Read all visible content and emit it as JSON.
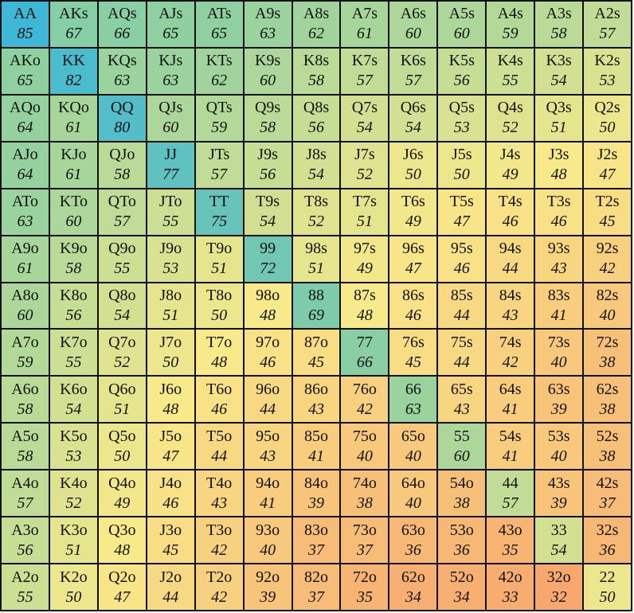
{
  "grid": {
    "rows": [
      [
        {
          "hand": "AA",
          "equity": "85"
        },
        {
          "hand": "AKs",
          "equity": "67"
        },
        {
          "hand": "AQs",
          "equity": "66"
        },
        {
          "hand": "AJs",
          "equity": "65"
        },
        {
          "hand": "ATs",
          "equity": "65"
        },
        {
          "hand": "A9s",
          "equity": "63"
        },
        {
          "hand": "A8s",
          "equity": "62"
        },
        {
          "hand": "A7s",
          "equity": "61"
        },
        {
          "hand": "A6s",
          "equity": "60"
        },
        {
          "hand": "A5s",
          "equity": "60"
        },
        {
          "hand": "A4s",
          "equity": "59"
        },
        {
          "hand": "A3s",
          "equity": "58"
        },
        {
          "hand": "A2s",
          "equity": "57"
        }
      ],
      [
        {
          "hand": "AKo",
          "equity": "65"
        },
        {
          "hand": "KK",
          "equity": "82"
        },
        {
          "hand": "KQs",
          "equity": "63"
        },
        {
          "hand": "KJs",
          "equity": "63"
        },
        {
          "hand": "KTs",
          "equity": "62"
        },
        {
          "hand": "K9s",
          "equity": "60"
        },
        {
          "hand": "K8s",
          "equity": "58"
        },
        {
          "hand": "K7s",
          "equity": "57"
        },
        {
          "hand": "K6s",
          "equity": "57"
        },
        {
          "hand": "K5s",
          "equity": "56"
        },
        {
          "hand": "K4s",
          "equity": "55"
        },
        {
          "hand": "K3s",
          "equity": "54"
        },
        {
          "hand": "K2s",
          "equity": "53"
        }
      ],
      [
        {
          "hand": "AQo",
          "equity": "64"
        },
        {
          "hand": "KQo",
          "equity": "61"
        },
        {
          "hand": "QQ",
          "equity": "80"
        },
        {
          "hand": "QJs",
          "equity": "60"
        },
        {
          "hand": "QTs",
          "equity": "59"
        },
        {
          "hand": "Q9s",
          "equity": "58"
        },
        {
          "hand": "Q8s",
          "equity": "56"
        },
        {
          "hand": "Q7s",
          "equity": "54"
        },
        {
          "hand": "Q6s",
          "equity": "54"
        },
        {
          "hand": "Q5s",
          "equity": "53"
        },
        {
          "hand": "Q4s",
          "equity": "52"
        },
        {
          "hand": "Q3s",
          "equity": "51"
        },
        {
          "hand": "Q2s",
          "equity": "50"
        }
      ],
      [
        {
          "hand": "AJo",
          "equity": "64"
        },
        {
          "hand": "KJo",
          "equity": "61"
        },
        {
          "hand": "QJo",
          "equity": "58"
        },
        {
          "hand": "JJ",
          "equity": "77"
        },
        {
          "hand": "JTs",
          "equity": "57"
        },
        {
          "hand": "J9s",
          "equity": "56"
        },
        {
          "hand": "J8s",
          "equity": "54"
        },
        {
          "hand": "J7s",
          "equity": "52"
        },
        {
          "hand": "J6s",
          "equity": "50"
        },
        {
          "hand": "J5s",
          "equity": "50"
        },
        {
          "hand": "J4s",
          "equity": "49"
        },
        {
          "hand": "J3s",
          "equity": "48"
        },
        {
          "hand": "J2s",
          "equity": "47"
        }
      ],
      [
        {
          "hand": "ATo",
          "equity": "63"
        },
        {
          "hand": "KTo",
          "equity": "60"
        },
        {
          "hand": "QTo",
          "equity": "57"
        },
        {
          "hand": "JTo",
          "equity": "55"
        },
        {
          "hand": "TT",
          "equity": "75"
        },
        {
          "hand": "T9s",
          "equity": "54"
        },
        {
          "hand": "T8s",
          "equity": "52"
        },
        {
          "hand": "T7s",
          "equity": "51"
        },
        {
          "hand": "T6s",
          "equity": "49"
        },
        {
          "hand": "T5s",
          "equity": "47"
        },
        {
          "hand": "T4s",
          "equity": "46"
        },
        {
          "hand": "T3s",
          "equity": "46"
        },
        {
          "hand": "T2s",
          "equity": "45"
        }
      ],
      [
        {
          "hand": "A9o",
          "equity": "61"
        },
        {
          "hand": "K9o",
          "equity": "58"
        },
        {
          "hand": "Q9o",
          "equity": "55"
        },
        {
          "hand": "J9o",
          "equity": "53"
        },
        {
          "hand": "T9o",
          "equity": "51"
        },
        {
          "hand": "99",
          "equity": "72"
        },
        {
          "hand": "98s",
          "equity": "51"
        },
        {
          "hand": "97s",
          "equity": "49"
        },
        {
          "hand": "96s",
          "equity": "47"
        },
        {
          "hand": "95s",
          "equity": "46"
        },
        {
          "hand": "94s",
          "equity": "44"
        },
        {
          "hand": "93s",
          "equity": "43"
        },
        {
          "hand": "92s",
          "equity": "42"
        }
      ],
      [
        {
          "hand": "A8o",
          "equity": "60"
        },
        {
          "hand": "K8o",
          "equity": "56"
        },
        {
          "hand": "Q8o",
          "equity": "54"
        },
        {
          "hand": "J8o",
          "equity": "51"
        },
        {
          "hand": "T8o",
          "equity": "50"
        },
        {
          "hand": "98o",
          "equity": "48"
        },
        {
          "hand": "88",
          "equity": "69"
        },
        {
          "hand": "87s",
          "equity": "48"
        },
        {
          "hand": "86s",
          "equity": "46"
        },
        {
          "hand": "85s",
          "equity": "44"
        },
        {
          "hand": "84s",
          "equity": "43"
        },
        {
          "hand": "83s",
          "equity": "41"
        },
        {
          "hand": "82s",
          "equity": "40"
        }
      ],
      [
        {
          "hand": "A7o",
          "equity": "59"
        },
        {
          "hand": "K7o",
          "equity": "55"
        },
        {
          "hand": "Q7o",
          "equity": "52"
        },
        {
          "hand": "J7o",
          "equity": "50"
        },
        {
          "hand": "T7o",
          "equity": "48"
        },
        {
          "hand": "97o",
          "equity": "46"
        },
        {
          "hand": "87o",
          "equity": "45"
        },
        {
          "hand": "77",
          "equity": "66"
        },
        {
          "hand": "76s",
          "equity": "45"
        },
        {
          "hand": "75s",
          "equity": "44"
        },
        {
          "hand": "74s",
          "equity": "42"
        },
        {
          "hand": "73s",
          "equity": "40"
        },
        {
          "hand": "72s",
          "equity": "38"
        }
      ],
      [
        {
          "hand": "A6o",
          "equity": "58"
        },
        {
          "hand": "K6o",
          "equity": "54"
        },
        {
          "hand": "Q6o",
          "equity": "51"
        },
        {
          "hand": "J6o",
          "equity": "48"
        },
        {
          "hand": "T6o",
          "equity": "46"
        },
        {
          "hand": "96o",
          "equity": "44"
        },
        {
          "hand": "86o",
          "equity": "43"
        },
        {
          "hand": "76o",
          "equity": "42"
        },
        {
          "hand": "66",
          "equity": "63"
        },
        {
          "hand": "65s",
          "equity": "43"
        },
        {
          "hand": "64s",
          "equity": "41"
        },
        {
          "hand": "63s",
          "equity": "39"
        },
        {
          "hand": "62s",
          "equity": "38"
        }
      ],
      [
        {
          "hand": "A5o",
          "equity": "58"
        },
        {
          "hand": "K5o",
          "equity": "53"
        },
        {
          "hand": "Q5o",
          "equity": "50"
        },
        {
          "hand": "J5o",
          "equity": "47"
        },
        {
          "hand": "T5o",
          "equity": "44"
        },
        {
          "hand": "95o",
          "equity": "43"
        },
        {
          "hand": "85o",
          "equity": "41"
        },
        {
          "hand": "75o",
          "equity": "40"
        },
        {
          "hand": "65o",
          "equity": "40"
        },
        {
          "hand": "55",
          "equity": "60"
        },
        {
          "hand": "54s",
          "equity": "41"
        },
        {
          "hand": "53s",
          "equity": "40"
        },
        {
          "hand": "52s",
          "equity": "38"
        }
      ],
      [
        {
          "hand": "A4o",
          "equity": "57"
        },
        {
          "hand": "K4o",
          "equity": "52"
        },
        {
          "hand": "Q4o",
          "equity": "49"
        },
        {
          "hand": "J4o",
          "equity": "46"
        },
        {
          "hand": "T4o",
          "equity": "43"
        },
        {
          "hand": "94o",
          "equity": "41"
        },
        {
          "hand": "84o",
          "equity": "39"
        },
        {
          "hand": "74o",
          "equity": "38"
        },
        {
          "hand": "64o",
          "equity": "40"
        },
        {
          "hand": "54o",
          "equity": "38"
        },
        {
          "hand": "44",
          "equity": "57"
        },
        {
          "hand": "43s",
          "equity": "39"
        },
        {
          "hand": "42s",
          "equity": "37"
        }
      ],
      [
        {
          "hand": "A3o",
          "equity": "56"
        },
        {
          "hand": "K3o",
          "equity": "51"
        },
        {
          "hand": "Q3o",
          "equity": "48"
        },
        {
          "hand": "J3o",
          "equity": "45"
        },
        {
          "hand": "T3o",
          "equity": "42"
        },
        {
          "hand": "93o",
          "equity": "40"
        },
        {
          "hand": "83o",
          "equity": "37"
        },
        {
          "hand": "73o",
          "equity": "37"
        },
        {
          "hand": "63o",
          "equity": "36"
        },
        {
          "hand": "53o",
          "equity": "36"
        },
        {
          "hand": "43o",
          "equity": "35"
        },
        {
          "hand": "33",
          "equity": "54"
        },
        {
          "hand": "32s",
          "equity": "36"
        }
      ],
      [
        {
          "hand": "A2o",
          "equity": "55"
        },
        {
          "hand": "K2o",
          "equity": "50"
        },
        {
          "hand": "Q2o",
          "equity": "47"
        },
        {
          "hand": "J2o",
          "equity": "44"
        },
        {
          "hand": "T2o",
          "equity": "42"
        },
        {
          "hand": "92o",
          "equity": "39"
        },
        {
          "hand": "82o",
          "equity": "37"
        },
        {
          "hand": "72o",
          "equity": "35"
        },
        {
          "hand": "62o",
          "equity": "34"
        },
        {
          "hand": "52o",
          "equity": "34"
        },
        {
          "hand": "42o",
          "equity": "33"
        },
        {
          "hand": "32o",
          "equity": "32"
        },
        {
          "hand": "22",
          "equity": "50"
        }
      ]
    ]
  },
  "colors": {
    "scale_high": "#3FB7D6",
    "scale_mid_high": "#8ED0A0",
    "scale_mid": "#F8E98A",
    "scale_low": "#F7A86E",
    "border": "#111111"
  }
}
